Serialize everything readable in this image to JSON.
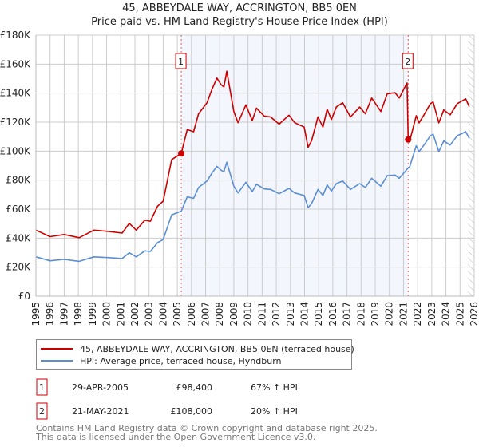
{
  "chart_data": {
    "type": "line",
    "title": "45, ABBEYDALE WAY, ACCRINGTON, BB5 0EN",
    "subtitle": "Price paid vs. HM Land Registry's House Price Index (HPI)",
    "xlim": [
      1995,
      2026
    ],
    "ylim": [
      0,
      180000
    ],
    "x_ticks": [
      "1995",
      "1996",
      "1997",
      "1998",
      "1999",
      "2000",
      "2001",
      "2002",
      "2003",
      "2004",
      "2005",
      "2006",
      "2007",
      "2008",
      "2009",
      "2010",
      "2011",
      "2012",
      "2013",
      "2014",
      "2015",
      "2016",
      "2017",
      "2018",
      "2019",
      "2020",
      "2021",
      "2022",
      "2023",
      "2024",
      "2025",
      "2026"
    ],
    "y_ticks": [
      {
        "value": 0,
        "label": "£0"
      },
      {
        "value": 20000,
        "label": "£20K"
      },
      {
        "value": 40000,
        "label": "£40K"
      },
      {
        "value": 60000,
        "label": "£60K"
      },
      {
        "value": 80000,
        "label": "£80K"
      },
      {
        "value": 100000,
        "label": "£100K"
      },
      {
        "value": 120000,
        "label": "£120K"
      },
      {
        "value": 140000,
        "label": "£140K"
      },
      {
        "value": 160000,
        "label": "£160K"
      },
      {
        "value": 180000,
        "label": "£180K"
      }
    ],
    "grid": true,
    "shaded_period": [
      2005.28,
      2021.33
    ],
    "forecast_hatch_from": 2025.56,
    "series": [
      {
        "name": "45, ABBEYDALE WAY, ACCRINGTON, BB5 0EN (terraced house)",
        "color": "#cc0000",
        "x": [
          1995.0,
          1996.0,
          1997.0,
          1998.06,
          1999.1,
          2000.06,
          2001.1,
          2001.6,
          2002.1,
          2002.7,
          2003.1,
          2003.6,
          2004.0,
          2004.6,
          2005.28,
          2005.7,
          2006.15,
          2006.5,
          2007.1,
          2007.45,
          2007.8,
          2008.1,
          2008.3,
          2008.5,
          2009.0,
          2009.3,
          2009.85,
          2010.3,
          2010.6,
          2011.15,
          2011.6,
          2012.2,
          2012.9,
          2013.3,
          2013.97,
          2014.25,
          2014.5,
          2014.95,
          2015.3,
          2015.6,
          2015.9,
          2016.25,
          2016.7,
          2017.25,
          2017.9,
          2018.3,
          2018.75,
          2019.4,
          2019.85,
          2020.4,
          2020.7,
          2021.25,
          2021.33,
          2021.45,
          2021.9,
          2022.1,
          2022.45,
          2022.9,
          2023.1,
          2023.5,
          2023.85,
          2024.3,
          2024.8,
          2025.4,
          2025.65
        ],
        "values": [
          45500,
          41000,
          42500,
          40300,
          45500,
          44700,
          43500,
          50200,
          45500,
          52400,
          51700,
          62000,
          65500,
          94100,
          98400,
          114900,
          113400,
          125800,
          133400,
          142600,
          150400,
          145800,
          144300,
          155100,
          127300,
          119600,
          131900,
          121100,
          129700,
          124200,
          123600,
          118600,
          124800,
          119600,
          116600,
          102600,
          107200,
          123600,
          116600,
          128900,
          121800,
          130400,
          133400,
          123600,
          130400,
          125800,
          136600,
          127300,
          139600,
          140300,
          136600,
          147000,
          108000,
          107400,
          124400,
          119500,
          125000,
          132700,
          133900,
          119500,
          128400,
          125000,
          132700,
          136100,
          130600
        ]
      },
      {
        "name": "HPI: Average price, terraced house, Hyndburn",
        "color": "#5b8fd4",
        "x": [
          1995.0,
          1996.0,
          1997.0,
          1998.06,
          1999.1,
          2000.06,
          2001.1,
          2001.6,
          2002.1,
          2002.7,
          2003.1,
          2003.6,
          2004.0,
          2004.6,
          2005.28,
          2005.7,
          2006.15,
          2006.5,
          2007.1,
          2007.45,
          2007.8,
          2008.1,
          2008.3,
          2008.5,
          2009.0,
          2009.3,
          2009.85,
          2010.3,
          2010.6,
          2011.15,
          2011.6,
          2012.2,
          2012.9,
          2013.3,
          2013.97,
          2014.25,
          2014.5,
          2014.95,
          2015.3,
          2015.6,
          2015.9,
          2016.25,
          2016.7,
          2017.25,
          2017.9,
          2018.3,
          2018.75,
          2019.4,
          2019.85,
          2020.4,
          2020.7,
          2021.25,
          2021.45,
          2021.9,
          2022.1,
          2022.45,
          2022.9,
          2023.1,
          2023.5,
          2023.85,
          2024.3,
          2024.8,
          2025.4,
          2025.65
        ],
        "values": [
          27100,
          24400,
          25300,
          24000,
          27100,
          26600,
          25900,
          29900,
          27100,
          31200,
          30800,
          36900,
          39000,
          56000,
          58600,
          68400,
          67500,
          74900,
          79400,
          84900,
          89500,
          86800,
          85900,
          92300,
          75800,
          71200,
          78500,
          72100,
          77200,
          73900,
          73600,
          70600,
          74300,
          71200,
          69400,
          61100,
          63800,
          73600,
          69400,
          76700,
          72500,
          77600,
          79400,
          73600,
          77600,
          74900,
          81300,
          75800,
          83100,
          83500,
          81300,
          87500,
          89500,
          103700,
          99600,
          104200,
          110600,
          111600,
          99600,
          107000,
          104200,
          110600,
          113400,
          108800
        ]
      }
    ],
    "annotations": [
      {
        "label": "1",
        "x": 2005.28,
        "value": 98400,
        "date": "29-APR-2005",
        "price": "£98,400",
        "hpi": "67% ↑ HPI"
      },
      {
        "label": "2",
        "x": 2021.33,
        "value": 108000,
        "date": "21-MAY-2021",
        "price": "£108,000",
        "hpi": "20% ↑ HPI"
      }
    ],
    "legend_position": "bottom"
  },
  "footer": {
    "line1": "Contains HM Land Registry data © Crown copyright and database right 2025.",
    "line2": "This data is licensed under the Open Government Licence v3.0."
  }
}
